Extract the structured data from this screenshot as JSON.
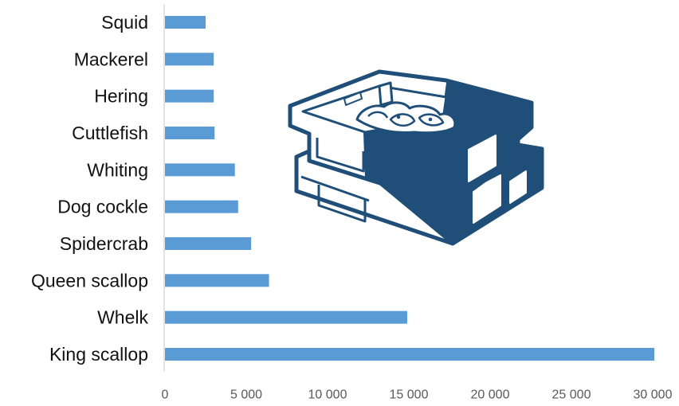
{
  "chart_data": {
    "type": "bar",
    "orientation": "horizontal",
    "categories": [
      "Squid",
      "Mackerel",
      "Hering",
      "Cuttlefish",
      "Whiting",
      "Dog cockle",
      "Spidercrab",
      "Queen scallop",
      "Whelk",
      "King scallop"
    ],
    "values": [
      2500,
      3000,
      3000,
      3050,
      4300,
      4500,
      5300,
      6400,
      14900,
      30100
    ],
    "x_ticks": [
      "0",
      "5 000",
      "10 000",
      "15 000",
      "20 000",
      "25 000",
      "30 000"
    ],
    "xlim": [
      0,
      30000
    ],
    "grid": false,
    "legend": "none",
    "colors": {
      "bar": "#5b9bd5",
      "icon": "#1f4e79",
      "axis": "#d9d9d9"
    },
    "decoration": "fish-crates-icon"
  }
}
